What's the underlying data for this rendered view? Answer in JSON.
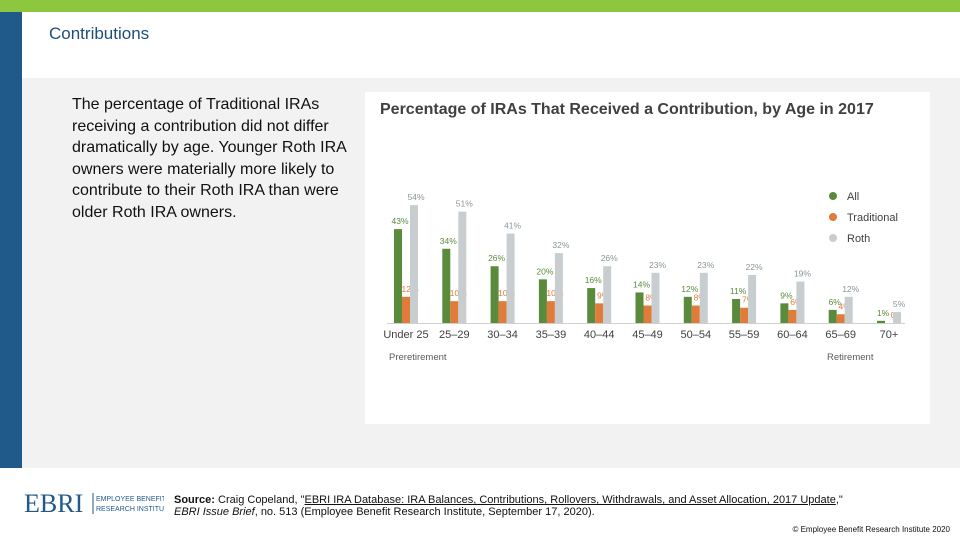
{
  "slide": {
    "title": "Contributions",
    "body_text": "The percentage of Traditional IRAs receiving a contribution did not differ dramatically by age. Younger Roth IRA owners were materially more likely to contribute to their Roth IRA than were older Roth IRA owners."
  },
  "colors": {
    "all": "#5a8a3c",
    "traditional": "#e07b39",
    "roth": "#c8ced0",
    "brand_blue": "#1f5a8a",
    "accent_green": "#8dc63f"
  },
  "chart_data": {
    "type": "bar",
    "title": "Percentage of IRAs That Received a Contribution, by Age in 2017",
    "categories": [
      "Under 25",
      "25–29",
      "30–34",
      "35–39",
      "40–44",
      "45–49",
      "50–54",
      "55–59",
      "60–64",
      "65–69",
      "70+"
    ],
    "series": [
      {
        "name": "All",
        "values": [
          43,
          34,
          26,
          20,
          16,
          14,
          12,
          11,
          9,
          6,
          1
        ],
        "labels": [
          "43%",
          "34%",
          "26%",
          "20%",
          "16%",
          "14%",
          "12%",
          "11%",
          "9%",
          "6%",
          "1%"
        ]
      },
      {
        "name": "Traditional",
        "values": [
          12,
          10,
          10,
          10,
          9,
          8,
          8,
          7,
          6,
          4,
          0
        ],
        "labels": [
          "12%",
          "10%",
          "10%",
          "10%",
          "9%",
          "8%",
          "8%",
          "7%",
          "6%",
          "4%",
          "0"
        ]
      },
      {
        "name": "Roth",
        "values": [
          54,
          51,
          41,
          32,
          26,
          23,
          23,
          22,
          19,
          12,
          5
        ],
        "labels": [
          "54%",
          "51%",
          "41%",
          "32%",
          "26%",
          "23%",
          "23%",
          "22%",
          "19%",
          "12%",
          "5%"
        ]
      }
    ],
    "ylim": [
      0,
      60
    ],
    "legend_position": "top-right",
    "grid": false,
    "annotations": {
      "left": "Preretirement",
      "right": "Retirement"
    }
  },
  "footer": {
    "logo_text": "EBRI",
    "logo_subtext": "EMPLOYEE BENEFIT RESEARCH INSTITUTE",
    "source_label": "Source:",
    "source_author": "Craig Copeland, \"",
    "source_link": "EBRI IRA Database: IRA Balances, Contributions, Rollovers, Withdrawals, and Asset Allocation, 2017 Update",
    "source_after_link": ",\"",
    "source_pub": "EBRI Issue Brief",
    "source_rest": ", no. 513 (Employee Benefit Research Institute, September 17, 2020).",
    "copyright": "© Employee Benefit Research Institute 2020"
  }
}
